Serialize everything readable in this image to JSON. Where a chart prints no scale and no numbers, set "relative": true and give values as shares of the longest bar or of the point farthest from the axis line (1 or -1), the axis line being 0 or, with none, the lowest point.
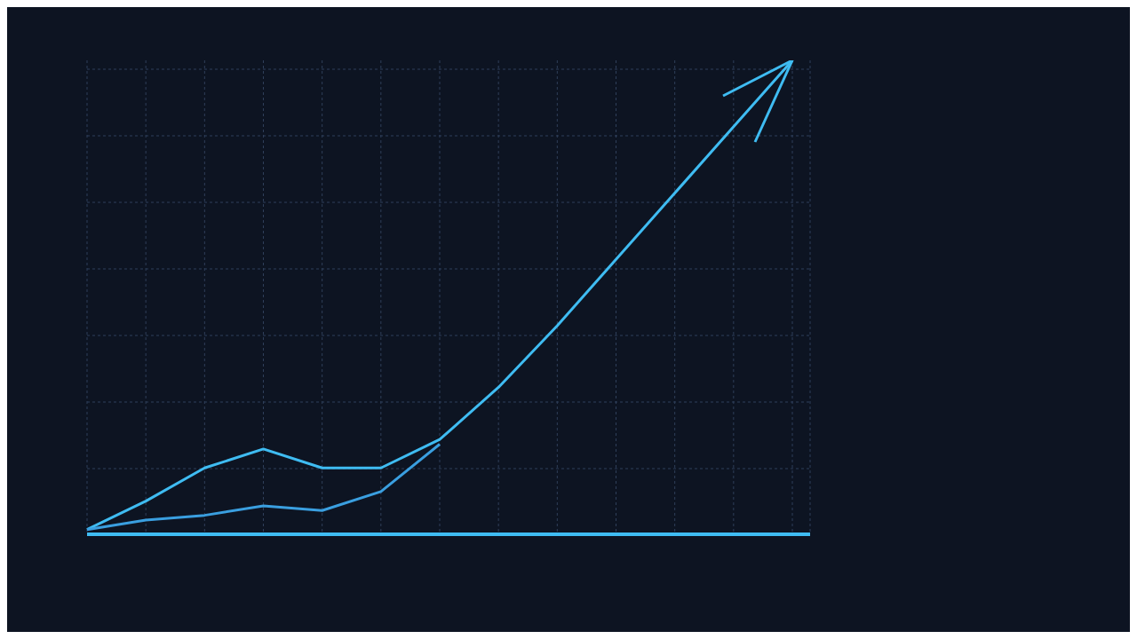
{
  "chart_data": {
    "type": "line",
    "relative": true,
    "grid": true,
    "line_style": "solid",
    "marker": "none",
    "categories": [
      null,
      null,
      null,
      null,
      null,
      null,
      null,
      null,
      null,
      null,
      null,
      null,
      null
    ],
    "series": [
      {
        "color": "#3fbcf2",
        "values": [
          0.01,
          0.07,
          0.14,
          0.18,
          0.14,
          0.14,
          0.2,
          0.31,
          0.44,
          0.58,
          0.72,
          0.86,
          1
        ]
      },
      {
        "color": "#3a9fe0",
        "values": [
          0.01,
          0.03,
          0.04,
          0.06,
          0.05,
          0.09,
          0.19,
          null,
          null,
          null,
          null,
          null,
          null
        ]
      }
    ]
  }
}
